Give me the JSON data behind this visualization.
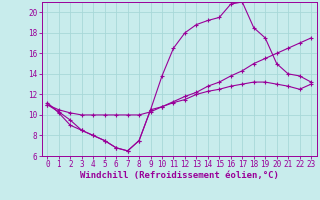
{
  "background_color": "#c8ecec",
  "grid_color": "#a8d8d8",
  "line_color": "#990099",
  "xlabel": "Windchill (Refroidissement éolien,°C)",
  "xlabel_fontsize": 6.5,
  "tick_fontsize": 5.5,
  "ylim": [
    6,
    21
  ],
  "xlim": [
    -0.5,
    23.5
  ],
  "yticks": [
    6,
    8,
    10,
    12,
    14,
    16,
    18,
    20
  ],
  "xticks": [
    0,
    1,
    2,
    3,
    4,
    5,
    6,
    7,
    8,
    9,
    10,
    11,
    12,
    13,
    14,
    15,
    16,
    17,
    18,
    19,
    20,
    21,
    22,
    23
  ],
  "series_bottom_x": [
    0,
    1,
    2,
    3,
    4,
    5,
    6,
    7,
    8,
    9,
    10,
    11,
    12,
    13,
    14,
    15,
    16,
    17,
    18,
    19,
    20,
    21,
    22,
    23
  ],
  "series_bottom_y": [
    11.0,
    10.3,
    9.5,
    8.5,
    8.0,
    7.5,
    6.8,
    6.5,
    7.5,
    10.5,
    10.8,
    11.2,
    11.5,
    12.0,
    12.3,
    12.5,
    12.8,
    13.0,
    13.2,
    13.2,
    13.0,
    12.8,
    12.5,
    13.0
  ],
  "series_mid_x": [
    0,
    1,
    2,
    3,
    4,
    5,
    6,
    7,
    8,
    9,
    10,
    11,
    12,
    13,
    14,
    15,
    16,
    17,
    18,
    19,
    20,
    21,
    22,
    23
  ],
  "series_mid_y": [
    11.0,
    10.5,
    10.2,
    10.0,
    10.0,
    10.0,
    10.0,
    10.0,
    10.0,
    10.3,
    10.8,
    11.3,
    11.8,
    12.2,
    12.8,
    13.2,
    13.8,
    14.3,
    15.0,
    15.5,
    16.0,
    16.5,
    17.0,
    17.5
  ],
  "series_top_x": [
    0,
    1,
    2,
    3,
    4,
    5,
    6,
    7,
    8,
    9,
    10,
    11,
    12,
    13,
    14,
    15,
    16,
    17,
    18,
    19,
    20,
    21,
    22,
    23
  ],
  "series_top_y": [
    11.2,
    10.2,
    9.0,
    8.5,
    8.0,
    7.5,
    6.8,
    6.5,
    7.5,
    10.5,
    13.8,
    16.5,
    18.0,
    18.8,
    19.2,
    19.5,
    20.8,
    21.0,
    18.5,
    17.5,
    15.0,
    14.0,
    13.8,
    13.2
  ]
}
